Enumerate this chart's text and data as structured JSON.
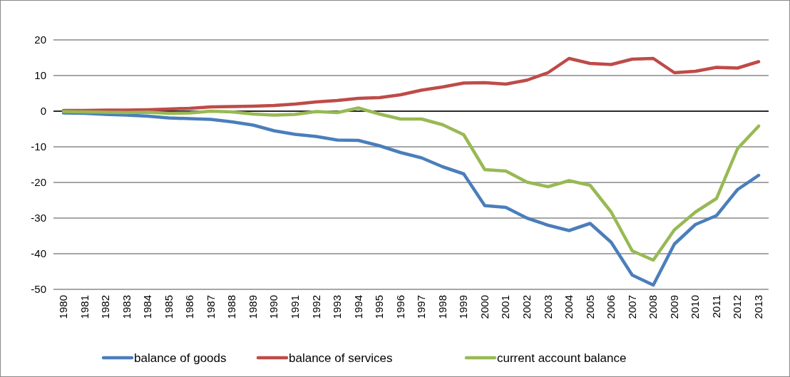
{
  "chart_data": {
    "type": "line",
    "categories": [
      "1980",
      "1981",
      "1982",
      "1983",
      "1984",
      "1985",
      "1986",
      "1987",
      "1988",
      "1989",
      "1990",
      "1991",
      "1992",
      "1993",
      "1994",
      "1995",
      "1996",
      "1997",
      "1998",
      "1999",
      "2000",
      "2001",
      "2002",
      "2003",
      "2004",
      "2005",
      "2006",
      "2007",
      "2008",
      "2009",
      "2010",
      "2011",
      "2012",
      "2013"
    ],
    "series": [
      {
        "name": "balance of goods",
        "color": "#4a7ebb",
        "values": [
          -0.5,
          -0.6,
          -0.9,
          -1.1,
          -1.4,
          -1.9,
          -2.1,
          -2.3,
          -3.0,
          -3.9,
          -5.5,
          -6.5,
          -7.1,
          -8.1,
          -8.2,
          -9.7,
          -11.6,
          -13.1,
          -15.6,
          -17.6,
          -26.5,
          -27.0,
          -30.0,
          -32.0,
          -33.5,
          -31.5,
          -36.8,
          -46.0,
          -48.8,
          -37.3,
          -31.8,
          -29.3,
          -22.0,
          -18.0
        ]
      },
      {
        "name": "balance of services",
        "color": "#be4b48",
        "values": [
          0.2,
          0.2,
          0.3,
          0.3,
          0.4,
          0.6,
          0.8,
          1.2,
          1.3,
          1.4,
          1.6,
          2.0,
          2.6,
          3.0,
          3.6,
          3.8,
          4.6,
          5.9,
          6.8,
          7.9,
          8.0,
          7.6,
          8.7,
          10.8,
          14.8,
          13.4,
          13.1,
          14.6,
          14.8,
          10.8,
          11.2,
          12.3,
          12.1,
          13.9
        ]
      },
      {
        "name": "current account balance",
        "color": "#98b954",
        "values": [
          -0.1,
          -0.2,
          -0.3,
          -0.4,
          -0.3,
          -0.6,
          -0.5,
          0.0,
          -0.2,
          -0.8,
          -1.1,
          -0.9,
          -0.1,
          -0.4,
          0.9,
          -0.8,
          -2.2,
          -2.2,
          -3.8,
          -6.6,
          -16.4,
          -16.8,
          -19.9,
          -21.2,
          -19.5,
          -20.8,
          -28.3,
          -39.2,
          -41.8,
          -33.3,
          -28.3,
          -24.5,
          -10.5,
          -4.2
        ]
      }
    ],
    "ylim": [
      -50,
      20
    ],
    "yticks": [
      -50,
      -40,
      -30,
      -20,
      -10,
      0,
      10,
      20
    ],
    "grid": "y",
    "legend": "bottom",
    "marker": "none",
    "line_style": "solid"
  }
}
